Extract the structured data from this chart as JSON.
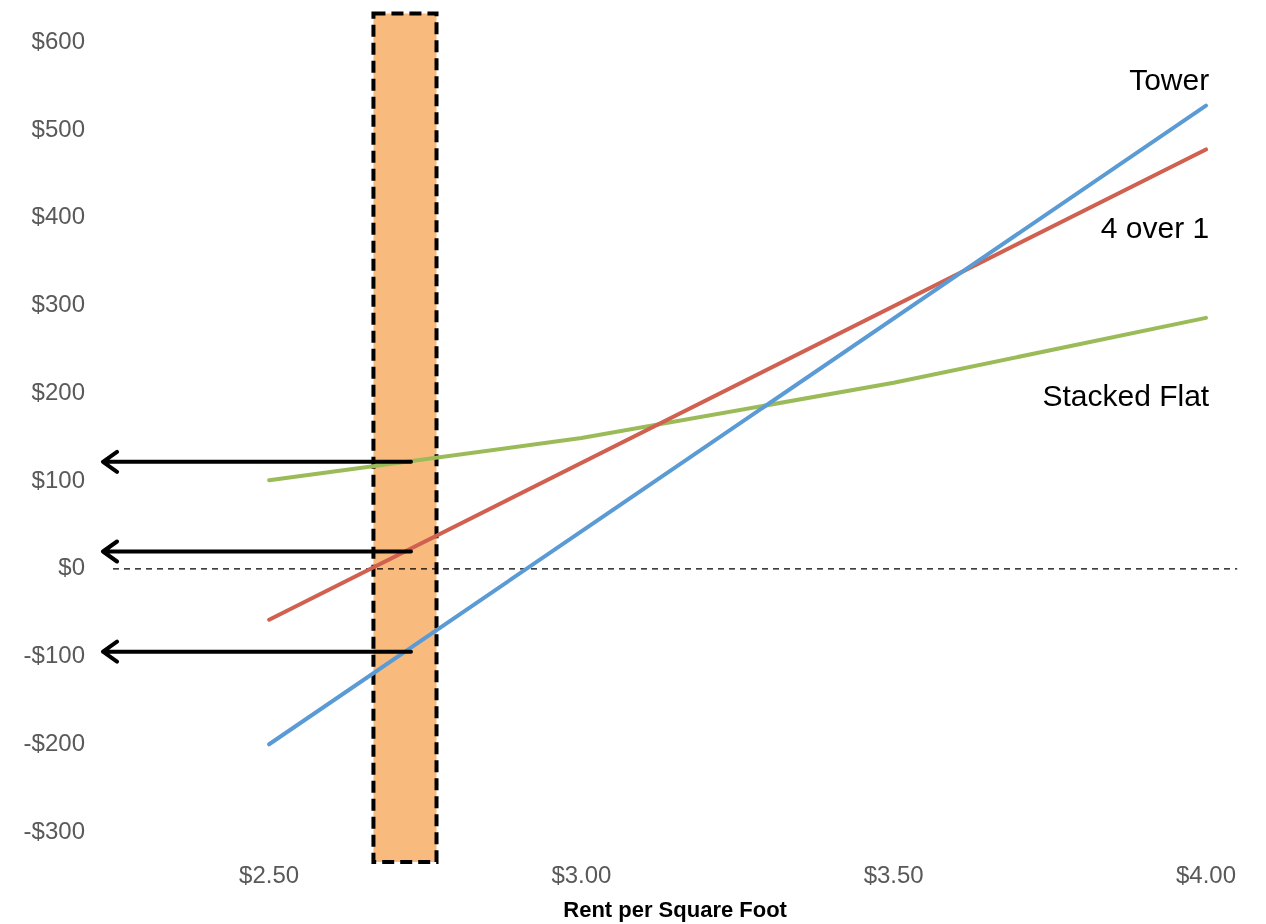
{
  "chart_data": {
    "type": "line",
    "xlabel": "Rent per Square Foot",
    "xlim": [
      2.25,
      4.05
    ],
    "ylim": [
      -300,
      600
    ],
    "xticks": [
      {
        "value": 2.5,
        "label": "$2.50"
      },
      {
        "value": 3,
        "label": "$3.00"
      },
      {
        "value": 3.5,
        "label": "$3.50"
      },
      {
        "value": 4,
        "label": "$4.00"
      }
    ],
    "yticks": [
      {
        "value": -300,
        "label": "-$300"
      },
      {
        "value": -200,
        "label": "-$200"
      },
      {
        "value": -100,
        "label": "-$100"
      },
      {
        "value": 0,
        "label": "$0"
      },
      {
        "value": 100,
        "label": "$100"
      },
      {
        "value": 200,
        "label": "$200"
      },
      {
        "value": 300,
        "label": "$300"
      },
      {
        "value": 400,
        "label": "$400"
      },
      {
        "value": 500,
        "label": "$500"
      },
      {
        "value": 600,
        "label": "$600"
      }
    ],
    "series": [
      {
        "name": "Tower",
        "color": "#5b9bd5",
        "x": [
          2.5,
          4
        ],
        "values": [
          -200,
          528
        ]
      },
      {
        "name": "4 over 1",
        "color": "#d0604f",
        "x": [
          2.5,
          4
        ],
        "values": [
          -58,
          478
        ]
      },
      {
        "name": "Stacked Flat",
        "color": "#9bbb59",
        "x": [
          2.5,
          3,
          3.5,
          4
        ],
        "values": [
          101,
          149,
          212,
          286
        ]
      }
    ],
    "ref_lines": [
      {
        "axis": "y",
        "value": 0,
        "color": "#000000",
        "line_style": "dashed"
      }
    ],
    "bands": [
      {
        "axis": "x",
        "from": 2.667,
        "to": 2.768,
        "color": "#f9bb7d"
      }
    ],
    "grid": false,
    "legend": false,
    "marker": "none",
    "line_style": "solid"
  }
}
